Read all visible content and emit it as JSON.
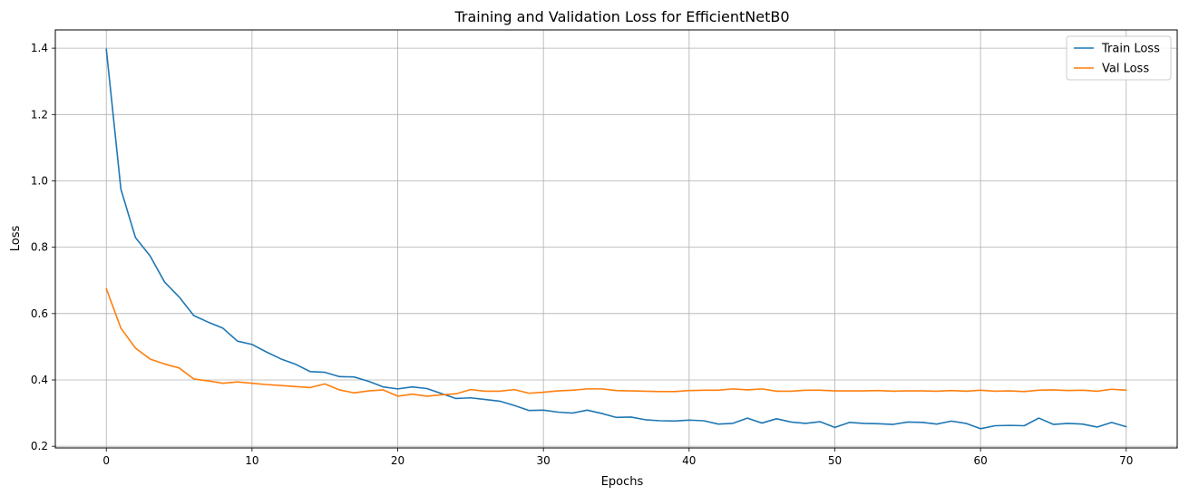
{
  "chart_data": {
    "type": "line",
    "title": "Training and Validation Loss for EfficientNetB0",
    "xlabel": "Epochs",
    "ylabel": "Loss",
    "xlim": [
      -3.5,
      73.5
    ],
    "ylim": [
      0.195,
      1.455
    ],
    "xticks": [
      0,
      10,
      20,
      30,
      40,
      50,
      60,
      70
    ],
    "yticks": [
      0.2,
      0.4,
      0.6,
      0.8,
      1.0,
      1.2,
      1.4
    ],
    "grid": true,
    "legend_position": "top-right",
    "series": [
      {
        "name": "Train Loss",
        "color": "#1f77b4",
        "values": [
          1.397,
          0.975,
          0.829,
          0.774,
          0.695,
          0.65,
          0.594,
          0.574,
          0.556,
          0.517,
          0.507,
          0.484,
          0.463,
          0.447,
          0.425,
          0.423,
          0.41,
          0.409,
          0.396,
          0.379,
          0.373,
          0.379,
          0.374,
          0.359,
          0.344,
          0.346,
          0.341,
          0.336,
          0.323,
          0.308,
          0.309,
          0.303,
          0.3,
          0.309,
          0.299,
          0.287,
          0.288,
          0.28,
          0.277,
          0.276,
          0.279,
          0.277,
          0.267,
          0.269,
          0.285,
          0.27,
          0.283,
          0.273,
          0.269,
          0.274,
          0.257,
          0.272,
          0.269,
          0.268,
          0.266,
          0.273,
          0.272,
          0.267,
          0.276,
          0.269,
          0.253,
          0.262,
          0.263,
          0.262,
          0.285,
          0.266,
          0.269,
          0.267,
          0.258,
          0.272,
          0.259
        ]
      },
      {
        "name": "Val Loss",
        "color": "#ff7f0e",
        "values": [
          0.675,
          0.556,
          0.496,
          0.463,
          0.448,
          0.436,
          0.403,
          0.397,
          0.39,
          0.394,
          0.39,
          0.386,
          0.383,
          0.38,
          0.377,
          0.388,
          0.37,
          0.361,
          0.367,
          0.37,
          0.351,
          0.357,
          0.351,
          0.355,
          0.358,
          0.371,
          0.366,
          0.366,
          0.371,
          0.36,
          0.363,
          0.367,
          0.369,
          0.373,
          0.373,
          0.368,
          0.367,
          0.366,
          0.365,
          0.365,
          0.368,
          0.369,
          0.369,
          0.373,
          0.37,
          0.373,
          0.366,
          0.366,
          0.369,
          0.369,
          0.367,
          0.367,
          0.367,
          0.368,
          0.366,
          0.367,
          0.367,
          0.366,
          0.368,
          0.366,
          0.369,
          0.366,
          0.367,
          0.365,
          0.369,
          0.37,
          0.368,
          0.369,
          0.366,
          0.372,
          0.369
        ]
      }
    ]
  }
}
